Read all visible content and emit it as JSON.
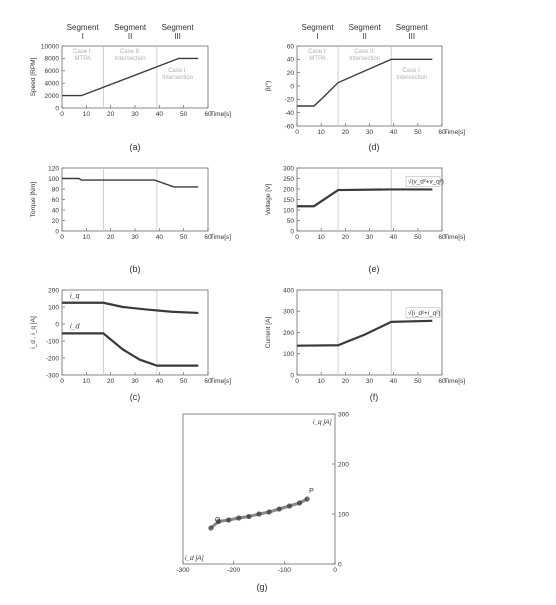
{
  "figure": {
    "captions": [
      "(a)",
      "(b)",
      "(c)",
      "(d)",
      "(e)",
      "(f)",
      "(g)"
    ],
    "segments": [
      {
        "title": "Segment",
        "roman": "I",
        "case_line1": "Case I:",
        "case_line2": "MTPA"
      },
      {
        "title": "Segment",
        "roman": "II",
        "case_line1": "Case II:",
        "case_line2": "Intersection"
      },
      {
        "title": "Segment",
        "roman": "III",
        "case_line1": "Case I:",
        "case_line2": "Intersection"
      }
    ],
    "segment_boundaries_s": [
      17,
      39
    ],
    "colors": {
      "plot_line": "#3a3a3a",
      "case_text": "#b0b0b0",
      "divider": "#c4c4c4"
    }
  },
  "chart_data": [
    {
      "id": "a",
      "type": "line",
      "caption": "(a)",
      "ylabel": "Speed [RPM]",
      "xlabel": "Time[s]",
      "xlim": [
        0,
        60
      ],
      "ylim": [
        0,
        10000
      ],
      "xticks": [
        0,
        10,
        20,
        30,
        40,
        50,
        60
      ],
      "yticks": [
        0,
        2000,
        4000,
        6000,
        8000,
        10000
      ],
      "series": [
        {
          "x": [
            0,
            8,
            48,
            56
          ],
          "y": [
            2000,
            2000,
            8000,
            8000
          ]
        }
      ]
    },
    {
      "id": "b",
      "type": "line",
      "caption": "(b)",
      "ylabel": "Torque [Nm]",
      "xlabel": "Time[s]",
      "xlim": [
        0,
        60
      ],
      "ylim": [
        0,
        120
      ],
      "xticks": [
        0,
        10,
        20,
        30,
        40,
        50,
        60
      ],
      "yticks": [
        0,
        20,
        40,
        60,
        80,
        100,
        120
      ],
      "series": [
        {
          "x": [
            0,
            7,
            8,
            38,
            46,
            47,
            56
          ],
          "y": [
            100,
            100,
            97,
            97,
            84,
            84,
            84
          ]
        }
      ]
    },
    {
      "id": "c",
      "type": "line",
      "caption": "(c)",
      "ylabel": "i_d , i_q [A]",
      "xlabel": "Time[s]",
      "xlim": [
        0,
        60
      ],
      "ylim": [
        -300,
        200
      ],
      "xticks": [
        0,
        10,
        20,
        30,
        40,
        50,
        60
      ],
      "yticks": [
        -300,
        -200,
        -100,
        0,
        100,
        200
      ],
      "series": [
        {
          "name": "i_q",
          "x": [
            0,
            17,
            25,
            35,
            45,
            56
          ],
          "y": [
            125,
            125,
            100,
            85,
            72,
            65
          ]
        },
        {
          "name": "i_d",
          "x": [
            0,
            17,
            25,
            32,
            39,
            56
          ],
          "y": [
            -55,
            -55,
            -150,
            -210,
            -245,
            -245
          ]
        }
      ]
    },
    {
      "id": "d",
      "type": "line",
      "caption": "(d)",
      "ylabel": "β(°)",
      "xlabel": "Time[s]",
      "xlim": [
        0,
        60
      ],
      "ylim": [
        -60,
        60
      ],
      "xticks": [
        0,
        10,
        20,
        30,
        40,
        50,
        60
      ],
      "yticks": [
        -60,
        -40,
        -20,
        0,
        20,
        40,
        60
      ],
      "series": [
        {
          "x": [
            0,
            7,
            10,
            17,
            39,
            56
          ],
          "y": [
            -30,
            -30,
            -20,
            5,
            40,
            40
          ]
        }
      ]
    },
    {
      "id": "e",
      "type": "line",
      "caption": "(e)",
      "ylabel": "Voltage [V]",
      "xlabel": "Time[s]",
      "xlim": [
        0,
        60
      ],
      "ylim": [
        0,
        300
      ],
      "xticks": [
        0,
        10,
        20,
        30,
        40,
        50,
        60
      ],
      "yticks": [
        0,
        50,
        100,
        150,
        200,
        250,
        300
      ],
      "series": [
        {
          "x": [
            0,
            7,
            17,
            39,
            56
          ],
          "y": [
            118,
            118,
            195,
            198,
            198
          ]
        }
      ],
      "annotation": "√(v_d²+v_q²)"
    },
    {
      "id": "f",
      "type": "line",
      "caption": "(f)",
      "ylabel": "Current [A]",
      "xlabel": "Time[s]",
      "xlim": [
        0,
        60
      ],
      "ylim": [
        0,
        400
      ],
      "xticks": [
        0,
        10,
        20,
        30,
        40,
        50,
        60
      ],
      "yticks": [
        0,
        100,
        200,
        300,
        400
      ],
      "series": [
        {
          "x": [
            0,
            17,
            28,
            39,
            56
          ],
          "y": [
            138,
            140,
            190,
            250,
            255
          ]
        }
      ],
      "annotation": "√(i_d²+i_q²)"
    },
    {
      "id": "g",
      "type": "scatter",
      "caption": "(g)",
      "xlabel": "i_d [A]",
      "ylabel": "i_q [A]",
      "xlim": [
        -300,
        0
      ],
      "ylim": [
        0,
        300
      ],
      "xticks": [
        -300,
        -200,
        -100,
        0
      ],
      "yticks": [
        0,
        100,
        200,
        300
      ],
      "point_labels": [
        "Q",
        "P"
      ],
      "series": [
        {
          "x": [
            -245,
            -230,
            -210,
            -190,
            -170,
            -150,
            -130,
            -110,
            -90,
            -70,
            -55
          ],
          "y": [
            72,
            85,
            88,
            92,
            95,
            100,
            104,
            110,
            116,
            122,
            130
          ]
        }
      ]
    }
  ]
}
